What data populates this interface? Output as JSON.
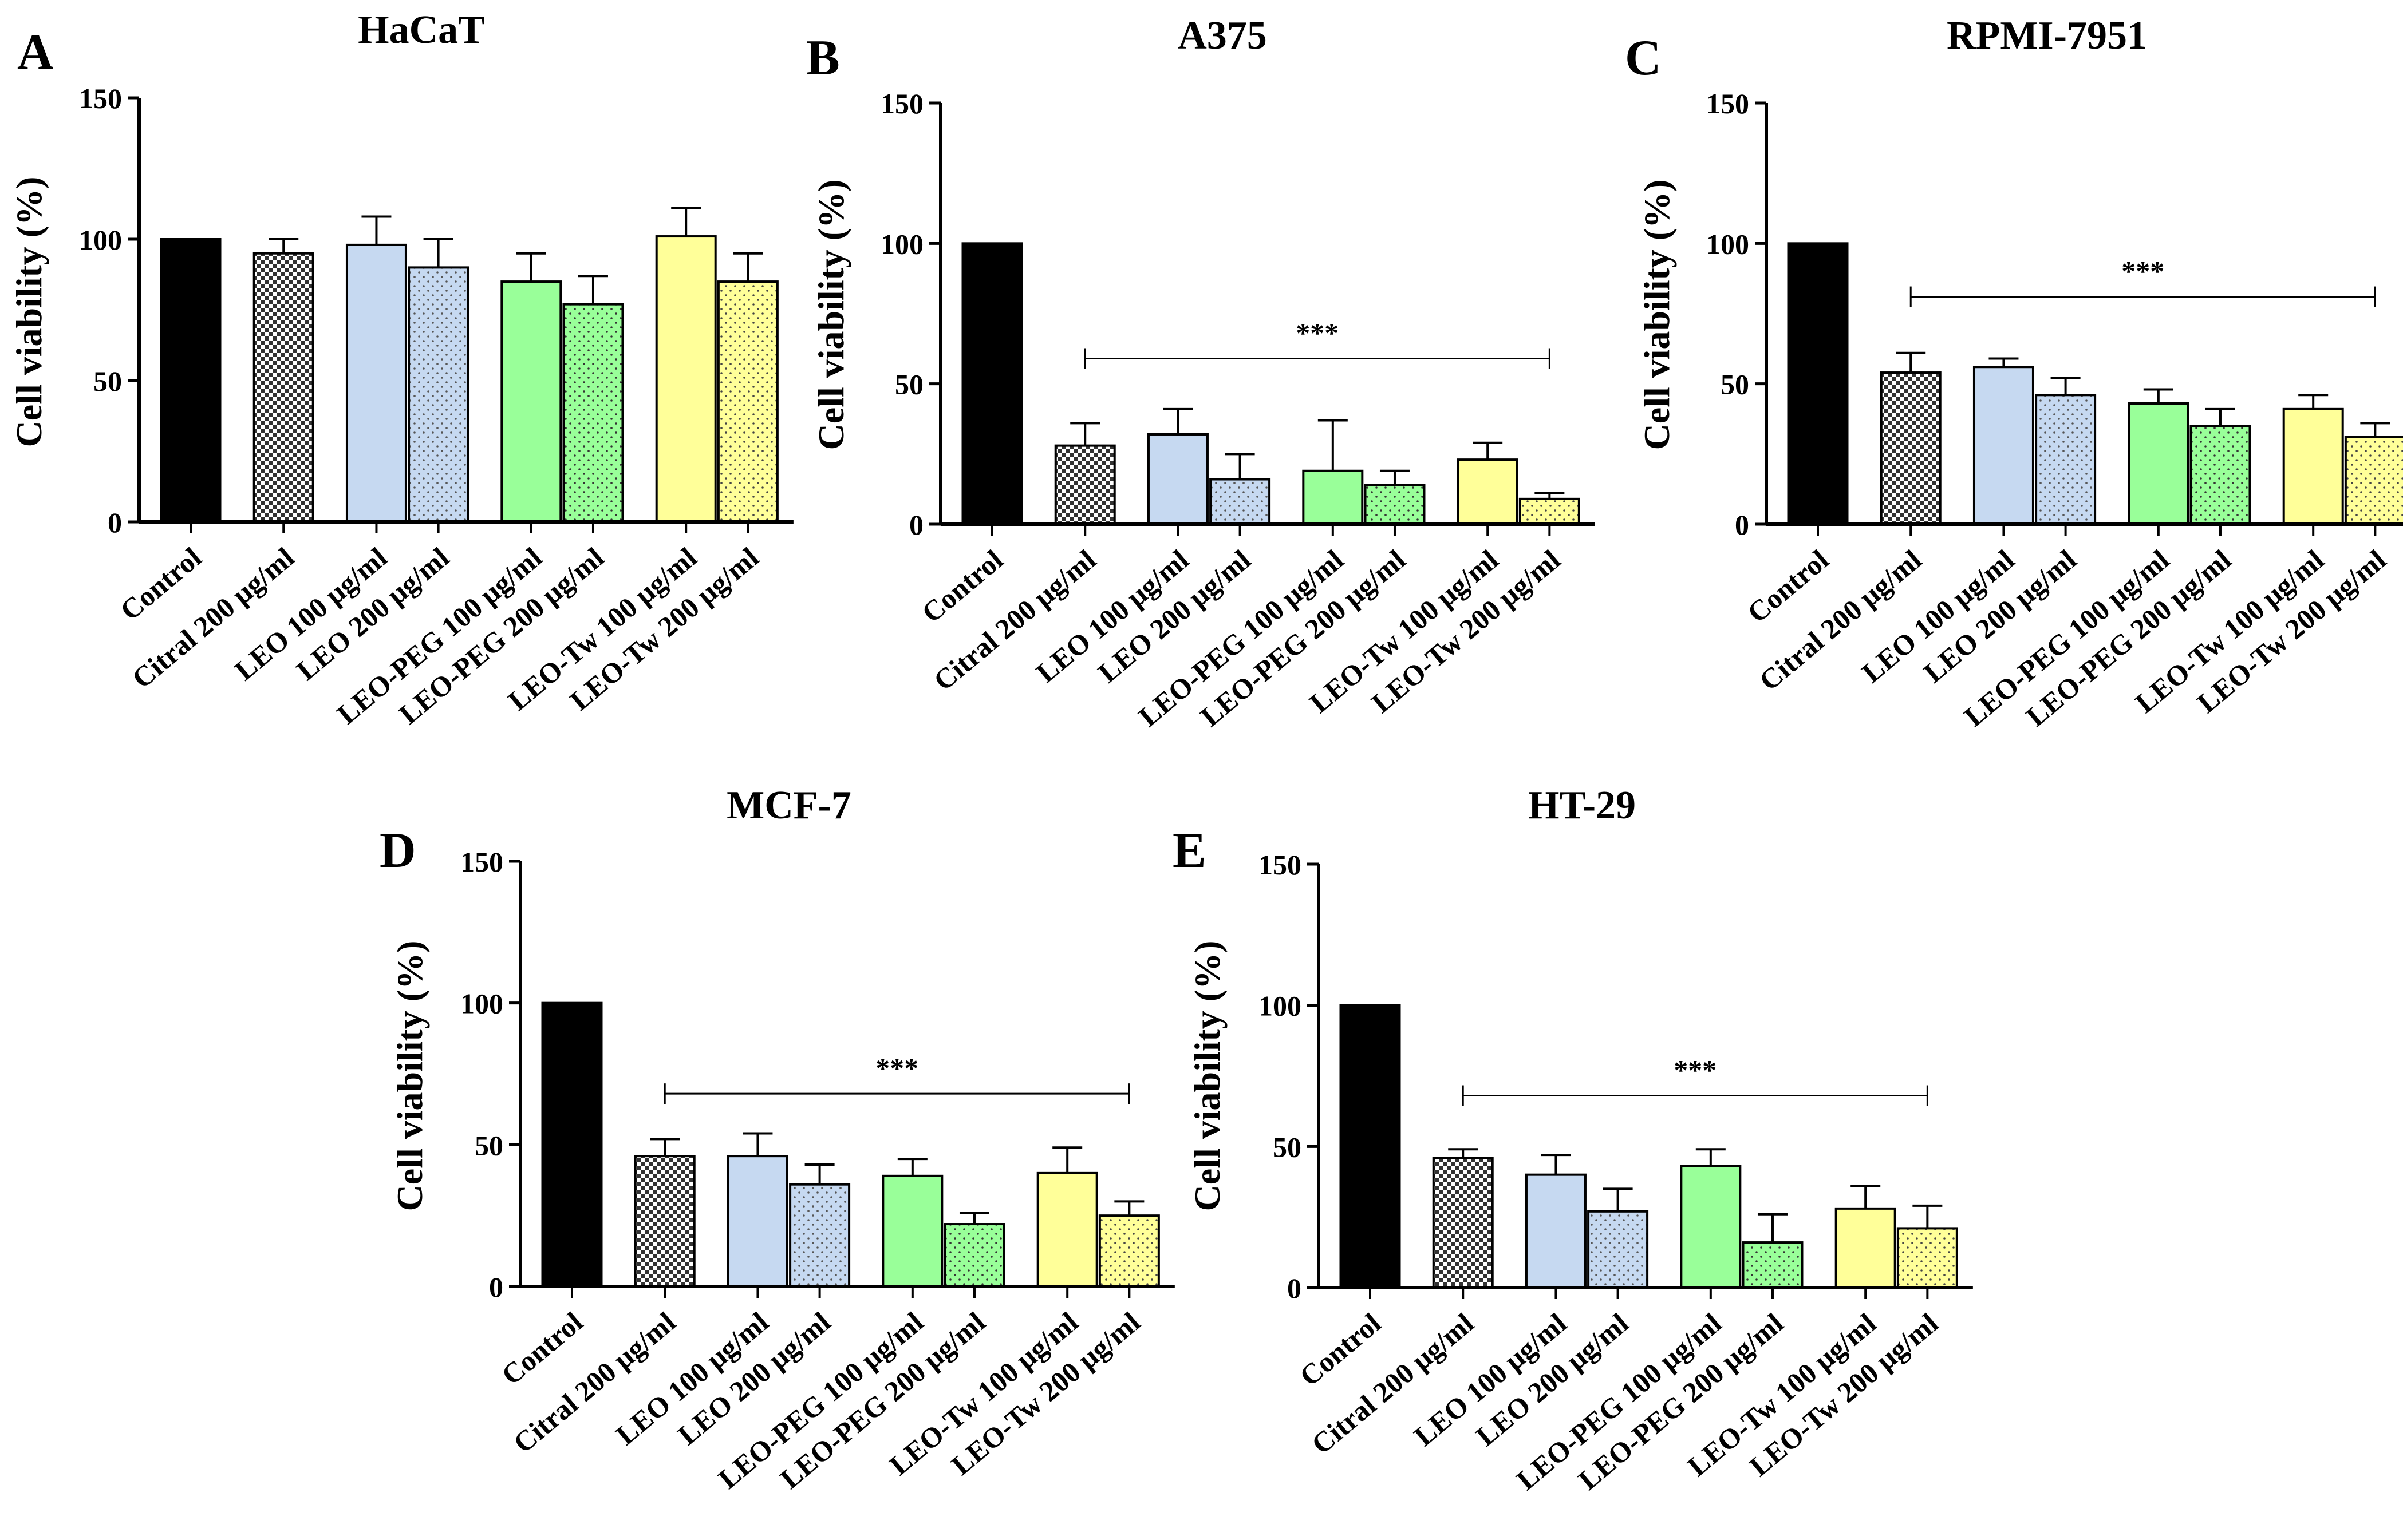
{
  "figure": {
    "categories": [
      "Control",
      "Citral 200 μg/ml",
      "LEO 100 μg/ml",
      "LEO 200 μg/ml",
      "LEO-PEG 100 μg/ml",
      "LEO-PEG 200 μg/ml",
      "LEO-Tw 100  μg/ml",
      "LEO-Tw 200 μg/ml"
    ],
    "bar_fills": [
      "#000000",
      "pattern:checker",
      "#c6d9f1",
      "pattern:blue-dots",
      "#99ff99",
      "pattern:green-dots",
      "#ffff99",
      "pattern:yellow-dots"
    ],
    "colors": {
      "blue": "#c6d9f1",
      "green": "#99ff99",
      "yellow": "#ffff99",
      "black": "#000000"
    }
  },
  "chart_data": [
    {
      "panel": "A",
      "type": "bar",
      "title": "HaCaT",
      "ylabel": "Cell viability (%)",
      "xlabel": "",
      "ylim": [
        0,
        150
      ],
      "yticks": [
        "0",
        "50",
        "100",
        "150"
      ],
      "categories": [
        "Control",
        "Citral 200 μg/ml",
        "LEO 100 μg/ml",
        "LEO 200 μg/ml",
        "LEO-PEG 100 μg/ml",
        "LEO-PEG 200 μg/ml",
        "LEO-Tw 100  μg/ml",
        "LEO-Tw 200 μg/ml"
      ],
      "values": [
        100,
        95,
        98,
        90,
        85,
        77,
        101,
        85
      ],
      "errors": [
        0,
        5,
        10,
        10,
        10,
        10,
        10,
        10
      ],
      "significance": null
    },
    {
      "panel": "B",
      "type": "bar",
      "title": "A375",
      "ylabel": "Cell viability (%)",
      "xlabel": "",
      "ylim": [
        0,
        150
      ],
      "yticks": [
        "0",
        "50",
        "100",
        "150"
      ],
      "categories": [
        "Control",
        "Citral 200 μg/ml",
        "LEO 100 μg/ml",
        "LEO 200 μg/ml",
        "LEO-PEG 100 μg/ml",
        "LEO-PEG 200 μg/ml",
        "LEO-Tw 100  μg/ml",
        "LEO-Tw 200 μg/ml"
      ],
      "values": [
        100,
        28,
        32,
        16,
        19,
        14,
        23,
        9
      ],
      "errors": [
        0,
        8,
        9,
        9,
        18,
        5,
        6,
        2
      ],
      "significance": {
        "label": "***",
        "y": 59
      }
    },
    {
      "panel": "C",
      "type": "bar",
      "title": "RPMI-7951",
      "ylabel": "Cell viability (%)",
      "xlabel": "",
      "ylim": [
        0,
        150
      ],
      "yticks": [
        "0",
        "50",
        "100",
        "150"
      ],
      "categories": [
        "Control",
        "Citral 200  μg/ml",
        "LEO 100 μg/ml",
        "LEO 200 μg/ml",
        "LEO-PEG 100 μg/ml",
        "LEO-PEG 200 μg/ml",
        "LEO-Tw 100  μg/ml",
        "LEO-Tw 200 μg/ml"
      ],
      "values": [
        100,
        54,
        56,
        46,
        43,
        35,
        41,
        31
      ],
      "errors": [
        0,
        7,
        3,
        6,
        5,
        6,
        5,
        5
      ],
      "significance": {
        "label": "***",
        "y": 81
      }
    },
    {
      "panel": "D",
      "type": "bar",
      "title": "MCF-7",
      "ylabel": "Cell viability (%)",
      "xlabel": "",
      "ylim": [
        0,
        150
      ],
      "yticks": [
        "0",
        "50",
        "100",
        "150"
      ],
      "categories": [
        "Control",
        "Citral 200 μg/ml",
        "LEO 100 μg/ml",
        "LEO 200 μg/ml",
        "LEO-PEG 100 μg/ml",
        "LEO-PEG 200 μg/ml",
        "LEO-Tw 100  μg/ml",
        "LEO-Tw 200 μg/ml"
      ],
      "values": [
        100,
        46,
        46,
        36,
        39,
        22,
        40,
        25
      ],
      "errors": [
        0,
        6,
        8,
        7,
        6,
        4,
        9,
        5
      ],
      "significance": {
        "label": "***",
        "y": 68
      }
    },
    {
      "panel": "E",
      "type": "bar",
      "title": "HT-29",
      "ylabel": "Cell viability (%)",
      "xlabel": "",
      "ylim": [
        0,
        150
      ],
      "yticks": [
        "0",
        "50",
        "100",
        "150"
      ],
      "categories": [
        "Control",
        "Citral 200 μg/ml",
        "LEO 100 μg/ml",
        "LEO 200 μg/ml",
        "LEO-PEG 100 μg/ml",
        "LEO-PEG 200 μg/ml",
        "LEO-Tw 100  μg/ml",
        "LEO-Tw 200 μg/ml"
      ],
      "values": [
        100,
        46,
        40,
        27,
        43,
        16,
        28,
        21
      ],
      "errors": [
        0,
        3,
        7,
        8,
        6,
        10,
        8,
        8
      ],
      "significance": {
        "label": "***",
        "y": 68
      }
    }
  ]
}
